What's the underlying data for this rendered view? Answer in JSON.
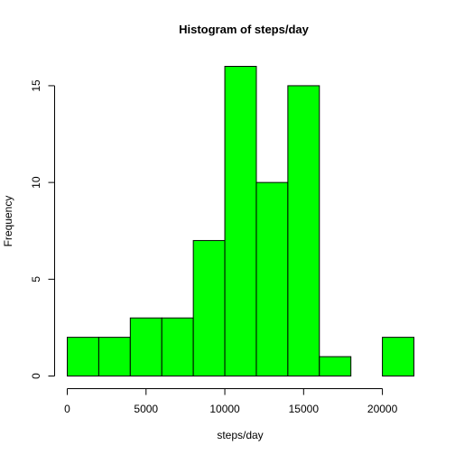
{
  "chart_data": {
    "type": "bar",
    "title": "Histogram of steps/day",
    "xlabel": "steps/day",
    "ylabel": "Frequency",
    "bin_edges": [
      0,
      2000,
      4000,
      6000,
      8000,
      10000,
      12000,
      14000,
      16000,
      18000,
      20000,
      22000
    ],
    "values": [
      2,
      2,
      3,
      3,
      7,
      16,
      10,
      15,
      1,
      0,
      2
    ],
    "xlim": [
      0,
      22000
    ],
    "ylim": [
      0,
      16
    ],
    "x_ticks": [
      0,
      5000,
      10000,
      15000,
      20000
    ],
    "y_ticks": [
      0,
      5,
      10,
      15
    ],
    "bar_color": "#00FF00",
    "grid": false
  }
}
